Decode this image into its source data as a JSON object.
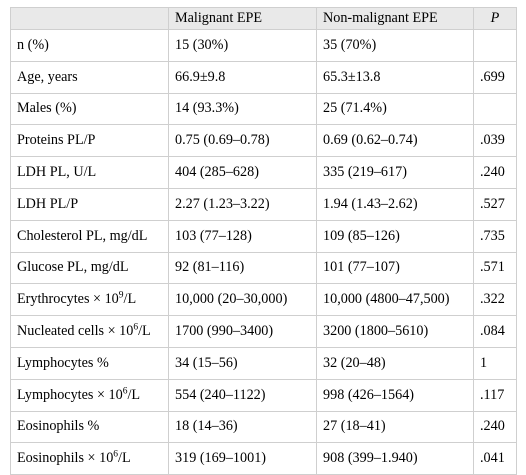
{
  "table": {
    "headers": [
      "",
      "Malignant EPE",
      "Non-malignant EPE",
      "P"
    ],
    "rows": [
      {
        "label_pre": "n (%)",
        "label_sup": "",
        "label_post": "",
        "malignant": "15 (30%)",
        "non_malignant": "35 (70%)",
        "p": ""
      },
      {
        "label_pre": "Age, years",
        "label_sup": "",
        "label_post": "",
        "malignant": "66.9±9.8",
        "non_malignant": "65.3±13.8",
        "p": ".699"
      },
      {
        "label_pre": "Males (%)",
        "label_sup": "",
        "label_post": "",
        "malignant": "14 (93.3%)",
        "non_malignant": "25 (71.4%)",
        "p": ""
      },
      {
        "label_pre": "Proteins PL/P",
        "label_sup": "",
        "label_post": "",
        "malignant": "0.75 (0.69–0.78)",
        "non_malignant": "0.69 (0.62–0.74)",
        "p": ".039"
      },
      {
        "label_pre": "LDH PL, U/L",
        "label_sup": "",
        "label_post": "",
        "malignant": "404 (285–628)",
        "non_malignant": "335 (219–617)",
        "p": ".240"
      },
      {
        "label_pre": "LDH PL/P",
        "label_sup": "",
        "label_post": "",
        "malignant": "2.27 (1.23–3.22)",
        "non_malignant": "1.94 (1.43–2.62)",
        "p": ".527"
      },
      {
        "label_pre": "Cholesterol PL, mg/dL",
        "label_sup": "",
        "label_post": "",
        "malignant": "103 (77–128)",
        "non_malignant": "109 (85–126)",
        "p": ".735"
      },
      {
        "label_pre": "Glucose PL, mg/dL",
        "label_sup": "",
        "label_post": "",
        "malignant": "92 (81–116)",
        "non_malignant": "101 (77–107)",
        "p": ".571"
      },
      {
        "label_pre": "Erythrocytes × 10",
        "label_sup": "9",
        "label_post": "/L",
        "malignant": "10,000 (20–30,000)",
        "non_malignant": "10,000 (4800–47,500)",
        "p": ".322"
      },
      {
        "label_pre": "Nucleated cells × 10",
        "label_sup": "6",
        "label_post": "/L",
        "malignant": "1700 (990–3400)",
        "non_malignant": "3200 (1800–5610)",
        "p": ".084"
      },
      {
        "label_pre": "Lymphocytes %",
        "label_sup": "",
        "label_post": "",
        "malignant": "34 (15–56)",
        "non_malignant": "32 (20–48)",
        "p": "1"
      },
      {
        "label_pre": "Lymphocytes × 10",
        "label_sup": "6",
        "label_post": "/L",
        "malignant": "554 (240–1122)",
        "non_malignant": "998 (426–1564)",
        "p": ".117"
      },
      {
        "label_pre": "Eosinophils %",
        "label_sup": "",
        "label_post": "",
        "malignant": "18 (14–36)",
        "non_malignant": "27 (18–41)",
        "p": ".240"
      },
      {
        "label_pre": "Eosinophils × 10",
        "label_sup": "6",
        "label_post": "/L",
        "malignant": "319 (169–1001)",
        "non_malignant": "908 (399–1.940)",
        "p": ".041"
      }
    ]
  }
}
